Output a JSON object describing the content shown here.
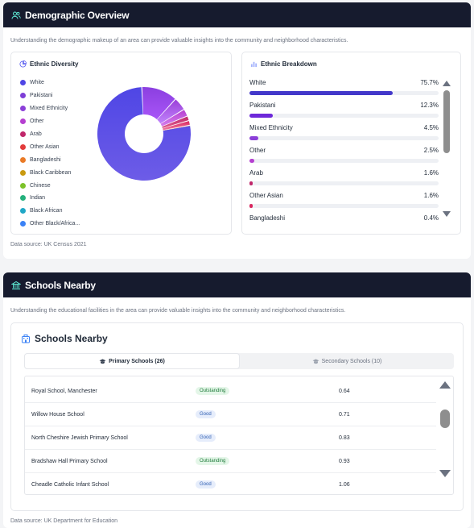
{
  "demographic": {
    "title": "Demographic Overview",
    "description": "Understanding the demographic makeup of an area can provide valuable insights into the community and neighborhood characteristics.",
    "source": "Data source: UK Census 2021",
    "diversity": {
      "title": "Ethnic Diversity",
      "legend": [
        {
          "label": "White",
          "color": "#4f46e5"
        },
        {
          "label": "Pakistani",
          "color": "#7e3fd6"
        },
        {
          "label": "Mixed Ethnicity",
          "color": "#8b3fd8"
        },
        {
          "label": "Other",
          "color": "#b53fd0"
        },
        {
          "label": "Arab",
          "color": "#c0266a"
        },
        {
          "label": "Other Asian",
          "color": "#e23b3b"
        },
        {
          "label": "Bangladeshi",
          "color": "#ea7a26"
        },
        {
          "label": "Black Caribbean",
          "color": "#c99a10"
        },
        {
          "label": "Chinese",
          "color": "#7cc229"
        },
        {
          "label": "Indian",
          "color": "#24b07c"
        },
        {
          "label": "Black African",
          "color": "#1fa7c6"
        },
        {
          "label": "Other Black/Africa...",
          "color": "#3b82f6"
        }
      ],
      "chart_data": {
        "type": "pie",
        "categories": [
          "White",
          "Pakistani",
          "Mixed Ethnicity",
          "Other",
          "Arab",
          "Other Asian",
          "Bangladeshi"
        ],
        "values": [
          75.7,
          12.3,
          4.5,
          2.5,
          1.6,
          1.6,
          0.4
        ]
      }
    },
    "breakdown": {
      "title": "Ethnic Breakdown",
      "items": [
        {
          "label": "White",
          "value": "75.7%",
          "pct": 75.7,
          "color": "#4338ca"
        },
        {
          "label": "Pakistani",
          "value": "12.3%",
          "pct": 12.3,
          "color": "#6d28d9"
        },
        {
          "label": "Mixed Ethnicity",
          "value": "4.5%",
          "pct": 4.5,
          "color": "#8b3fd8"
        },
        {
          "label": "Other",
          "value": "2.5%",
          "pct": 2.5,
          "color": "#b53fd0"
        },
        {
          "label": "Arab",
          "value": "1.6%",
          "pct": 1.6,
          "color": "#c0266a"
        },
        {
          "label": "Other Asian",
          "value": "1.6%",
          "pct": 1.6,
          "color": "#d9265f"
        },
        {
          "label": "Bangladeshi",
          "value": "0.4%",
          "pct": 0.4,
          "color": "#ea7a26"
        }
      ]
    }
  },
  "schools": {
    "title": "Schools Nearby",
    "description": "Understanding the educational facilities in the area can provide valuable insights into the community and neighborhood characteristics.",
    "source": "Data source: UK Department for Education",
    "card_title": "Schools Nearby",
    "tabs": {
      "primary": "Primary Schools (26)",
      "secondary": "Secondary Schools (10)"
    },
    "rows": [
      {
        "name": "Royal School, Manchester",
        "rating": "Outstanding",
        "distance": "0.64"
      },
      {
        "name": "Willow House School",
        "rating": "Good",
        "distance": "0.71"
      },
      {
        "name": "North Cheshire Jewish Primary School",
        "rating": "Good",
        "distance": "0.83"
      },
      {
        "name": "Bradshaw Hall Primary School",
        "rating": "Outstanding",
        "distance": "0.93"
      },
      {
        "name": "Cheadle Catholic Infant School",
        "rating": "Good",
        "distance": "1.06"
      }
    ]
  }
}
